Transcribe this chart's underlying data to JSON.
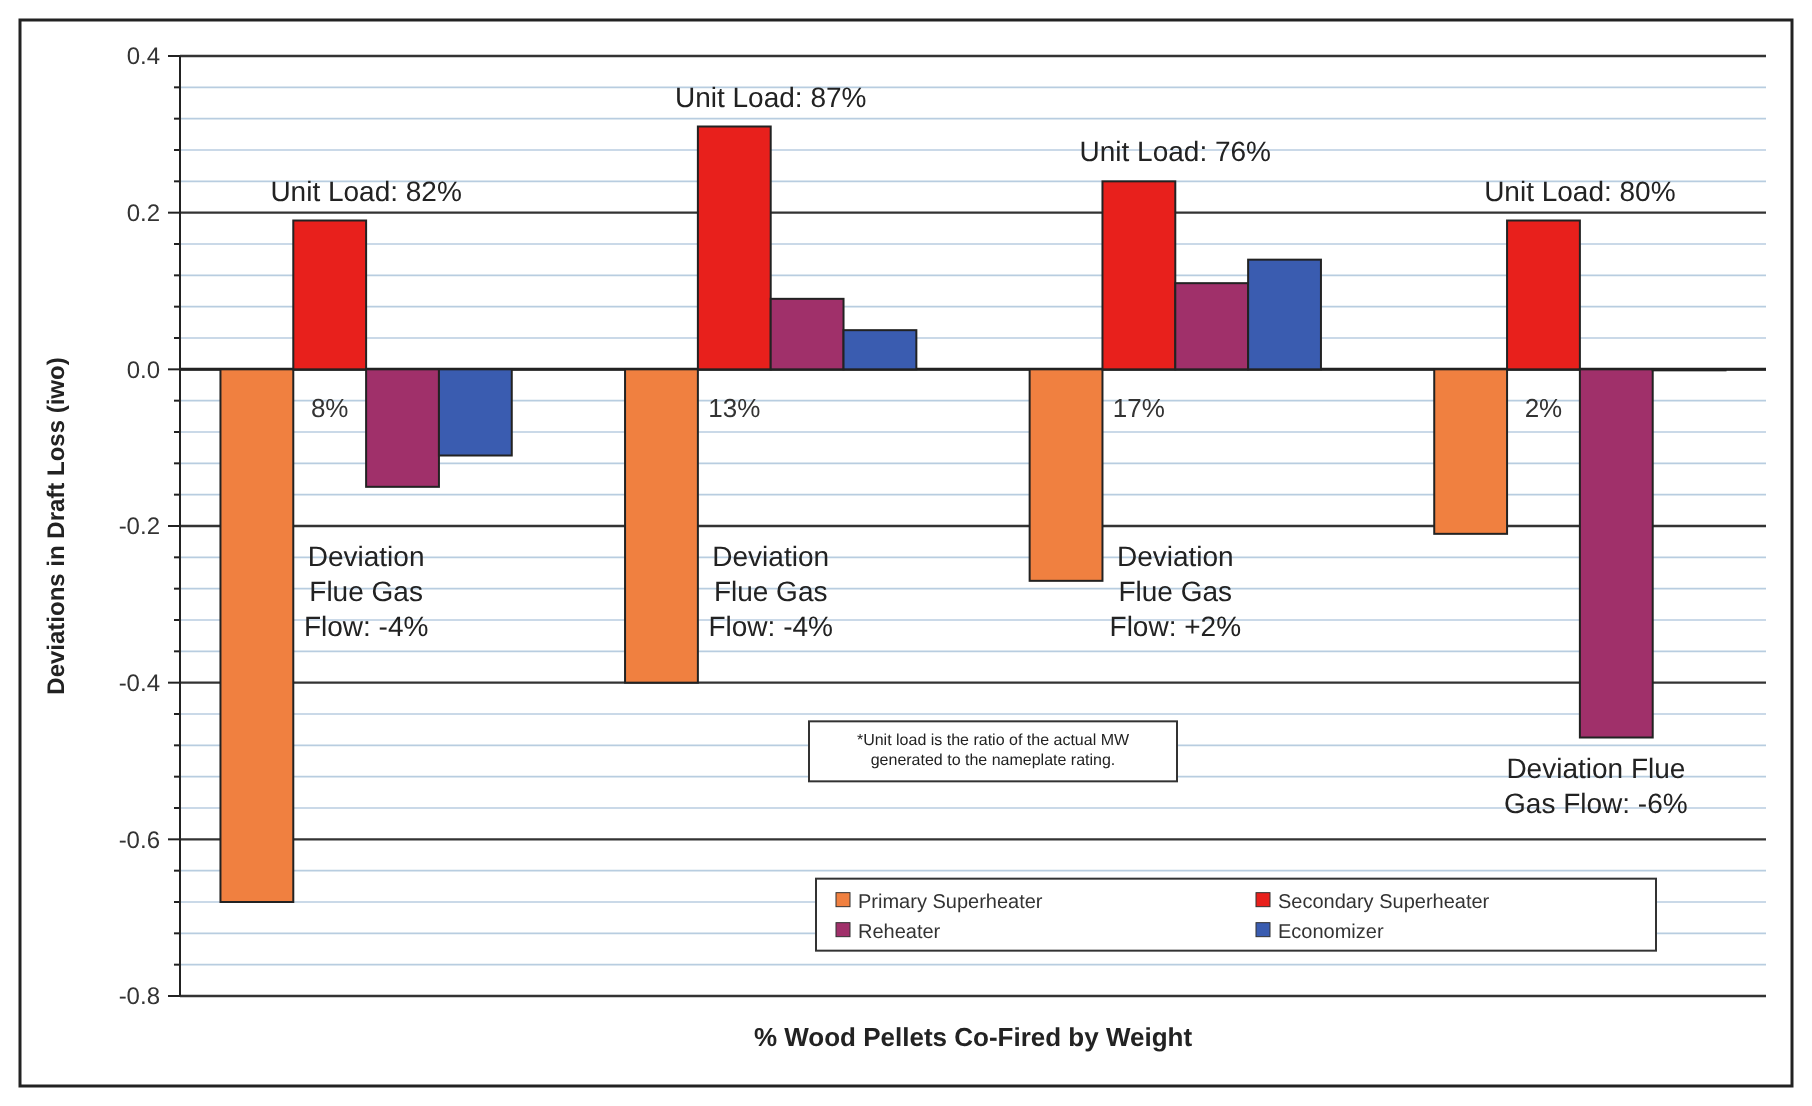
{
  "chart_data": {
    "type": "bar",
    "xlabel": "% Wood Pellets Co-Fired by Weight",
    "ylabel": "Deviations in Draft Loss (iwo)",
    "categories": [
      "8%",
      "13%",
      "17%",
      "2%"
    ],
    "series": [
      {
        "name": "Primary Superheater",
        "color": "#f08040",
        "values": [
          -0.68,
          -0.4,
          -0.27,
          -0.21
        ]
      },
      {
        "name": "Secondary Superheater",
        "color": "#e8201c",
        "values": [
          0.19,
          0.31,
          0.24,
          0.19
        ]
      },
      {
        "name": "Reheater",
        "color": "#a0306a",
        "values": [
          -0.15,
          0.09,
          0.11,
          -0.47
        ]
      },
      {
        "name": "Economizer",
        "color": "#3a5cb0",
        "values": [
          -0.11,
          0.05,
          0.14,
          0
        ]
      }
    ],
    "ylim": [
      -0.8,
      0.4
    ],
    "yticks": [
      -0.8,
      {
        "value": -0.76,
        "label": null
      },
      {
        "value": -0.72,
        "label": null
      },
      {
        "value": -0.68,
        "label": null
      },
      {
        "value": -0.64,
        "label": null
      },
      -0.6,
      {
        "value": -0.56,
        "label": null
      },
      {
        "value": -0.52,
        "label": null
      },
      {
        "value": -0.48,
        "label": null
      },
      {
        "value": -0.44,
        "label": null
      },
      -0.4,
      {
        "value": -0.36,
        "label": null
      },
      {
        "value": -0.32,
        "label": null
      },
      {
        "value": -0.28,
        "label": null
      },
      {
        "value": -0.24,
        "label": null
      },
      -0.2,
      {
        "value": -0.16,
        "label": null
      },
      {
        "value": -0.12,
        "label": null
      },
      {
        "value": -0.08,
        "label": null
      },
      {
        "value": -0.04,
        "label": null
      },
      {
        "value": 0,
        "label": "0.0"
      },
      {
        "value": 0.04,
        "label": null
      },
      {
        "value": 0.08,
        "label": null
      },
      {
        "value": 0.12,
        "label": null
      },
      {
        "value": 0.16,
        "label": null
      },
      0.2,
      {
        "value": 0.24,
        "label": null
      },
      {
        "value": 0.28,
        "label": null
      },
      {
        "value": 0.32,
        "label": null
      },
      {
        "value": 0.36,
        "label": null
      },
      0.4
    ],
    "grid": "y",
    "legend": "bottom right",
    "annotations": [
      "Unit Load: 82%",
      "Unit Load: 87%",
      "Unit Load: 76%",
      "Unit Load: 80%",
      "Deviation\nFlue Gas\nFlow: -4%",
      "Deviation\nFlue Gas\nFlow: -4%",
      "Deviation\nFlue Gas\nFlow: +2%",
      "Deviation Flue\nGas Flow: -6%",
      "*Unit load is the ratio of the actual MW\ngenerated to the nameplate rating."
    ]
  }
}
